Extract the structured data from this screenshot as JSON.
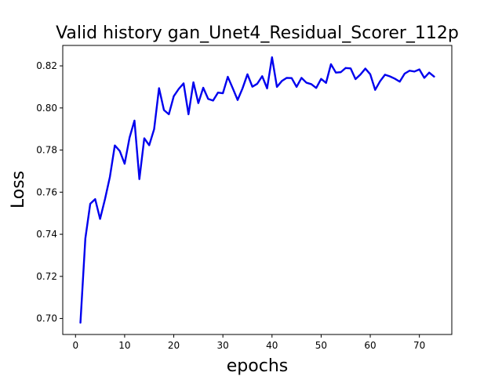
{
  "chart_data": {
    "type": "line",
    "title": "Valid history gan_Unet4_Residual_Scorer_112p",
    "xlabel": "epochs",
    "ylabel": "Loss",
    "xlim": [
      -2.6,
      76.6
    ],
    "ylim": [
      0.6924,
      0.8297
    ],
    "xticks": [
      0,
      10,
      20,
      30,
      40,
      50,
      60,
      70
    ],
    "yticks": [
      0.7,
      0.72,
      0.74,
      0.76,
      0.78,
      0.8,
      0.82
    ],
    "ytick_labels": [
      "0.70",
      "0.72",
      "0.74",
      "0.76",
      "0.78",
      "0.80",
      "0.82"
    ],
    "grid": false,
    "series": [
      {
        "color": "#0000ee",
        "x": [
          1,
          2,
          3,
          4,
          5,
          6,
          7,
          8,
          9,
          10,
          11,
          12,
          13,
          14,
          15,
          16,
          17,
          18,
          19,
          20,
          21,
          22,
          23,
          24,
          25,
          26,
          27,
          28,
          29,
          30,
          31,
          32,
          33,
          34,
          35,
          36,
          37,
          38,
          39,
          40,
          41,
          42,
          43,
          44,
          45,
          46,
          47,
          48,
          49,
          50,
          51,
          52,
          53,
          54,
          55,
          56,
          57,
          58,
          59,
          60,
          61,
          62,
          63,
          64,
          65,
          66,
          67,
          68,
          69,
          70,
          71,
          72,
          73
        ],
        "y": [
          0.698,
          0.738,
          0.7545,
          0.7567,
          0.7473,
          0.7567,
          0.7673,
          0.7822,
          0.7796,
          0.7735,
          0.7859,
          0.794,
          0.7662,
          0.7856,
          0.7823,
          0.7899,
          0.8094,
          0.799,
          0.797,
          0.8056,
          0.809,
          0.8117,
          0.797,
          0.8122,
          0.8023,
          0.8096,
          0.8043,
          0.8035,
          0.8073,
          0.807,
          0.8148,
          0.8094,
          0.8038,
          0.8093,
          0.816,
          0.8101,
          0.8115,
          0.8151,
          0.8093,
          0.8241,
          0.81,
          0.8128,
          0.8143,
          0.8142,
          0.81,
          0.8143,
          0.812,
          0.8113,
          0.8095,
          0.8138,
          0.8119,
          0.8208,
          0.8168,
          0.817,
          0.819,
          0.8188,
          0.8137,
          0.8159,
          0.8187,
          0.816,
          0.8086,
          0.8127,
          0.8158,
          0.815,
          0.8139,
          0.8125,
          0.8163,
          0.8177,
          0.8173,
          0.8183,
          0.8143,
          0.8168,
          0.8149
        ]
      }
    ]
  }
}
